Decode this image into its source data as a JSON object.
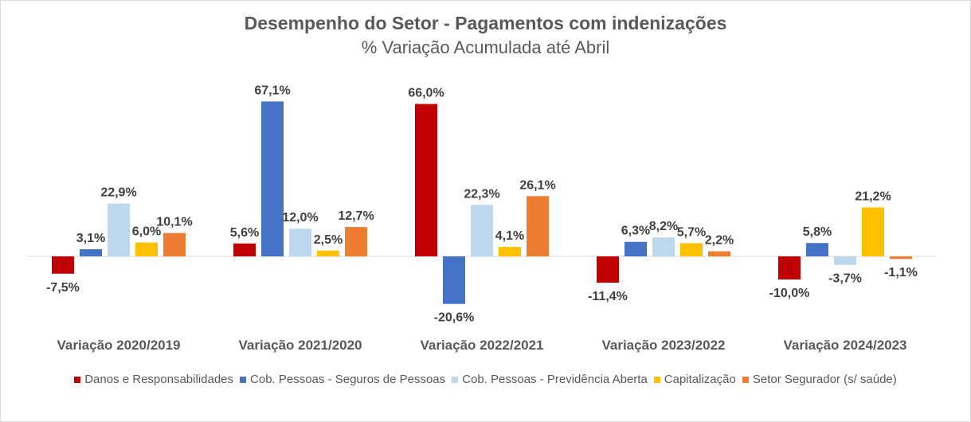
{
  "chart_data": {
    "type": "bar",
    "title": "Desempenho do Setor - Pagamentos com indenizações",
    "subtitle": "% Variação Acumulada até Abril",
    "categories": [
      "Variação 2020/2019",
      "Variação 2021/2020",
      "Variação 2022/2021",
      "Variação 2023/2022",
      "Variação 2024/2023"
    ],
    "series": [
      {
        "name": "Danos e Responsabilidades",
        "color": "#c00000",
        "values": [
          -7.5,
          5.6,
          66.0,
          -11.4,
          -10.0
        ],
        "labels": [
          "-7,5%",
          "5,6%",
          "66,0%",
          "-11,4%",
          "-10,0%"
        ]
      },
      {
        "name": "Cob. Pessoas - Seguros de Pessoas",
        "color": "#4472c4",
        "values": [
          3.1,
          67.1,
          -20.6,
          6.3,
          5.8
        ],
        "labels": [
          "3,1%",
          "67,1%",
          "-20,6%",
          "6,3%",
          "5,8%"
        ]
      },
      {
        "name": "Cob. Pessoas - Previdência Aberta",
        "color": "#bdd7ee",
        "values": [
          22.9,
          12.0,
          22.3,
          8.2,
          -3.7
        ],
        "labels": [
          "22,9%",
          "12,0%",
          "22,3%",
          "8,2%",
          "-3,7%"
        ]
      },
      {
        "name": "Capitalização",
        "color": "#ffc000",
        "values": [
          6.0,
          2.5,
          4.1,
          5.7,
          21.2
        ],
        "labels": [
          "6,0%",
          "2,5%",
          "4,1%",
          "5,7%",
          "21,2%"
        ]
      },
      {
        "name": "Setor Segurador (s/ saúde)",
        "color": "#ed7d31",
        "values": [
          10.1,
          12.7,
          26.1,
          2.2,
          -1.1
        ],
        "labels": [
          "10,1%",
          "12,7%",
          "26,1%",
          "2,2%",
          "-1,1%"
        ]
      }
    ],
    "xlabel": "",
    "ylabel": "",
    "ylim": [
      -25,
      70
    ],
    "grid": false,
    "legend": "bottom"
  }
}
